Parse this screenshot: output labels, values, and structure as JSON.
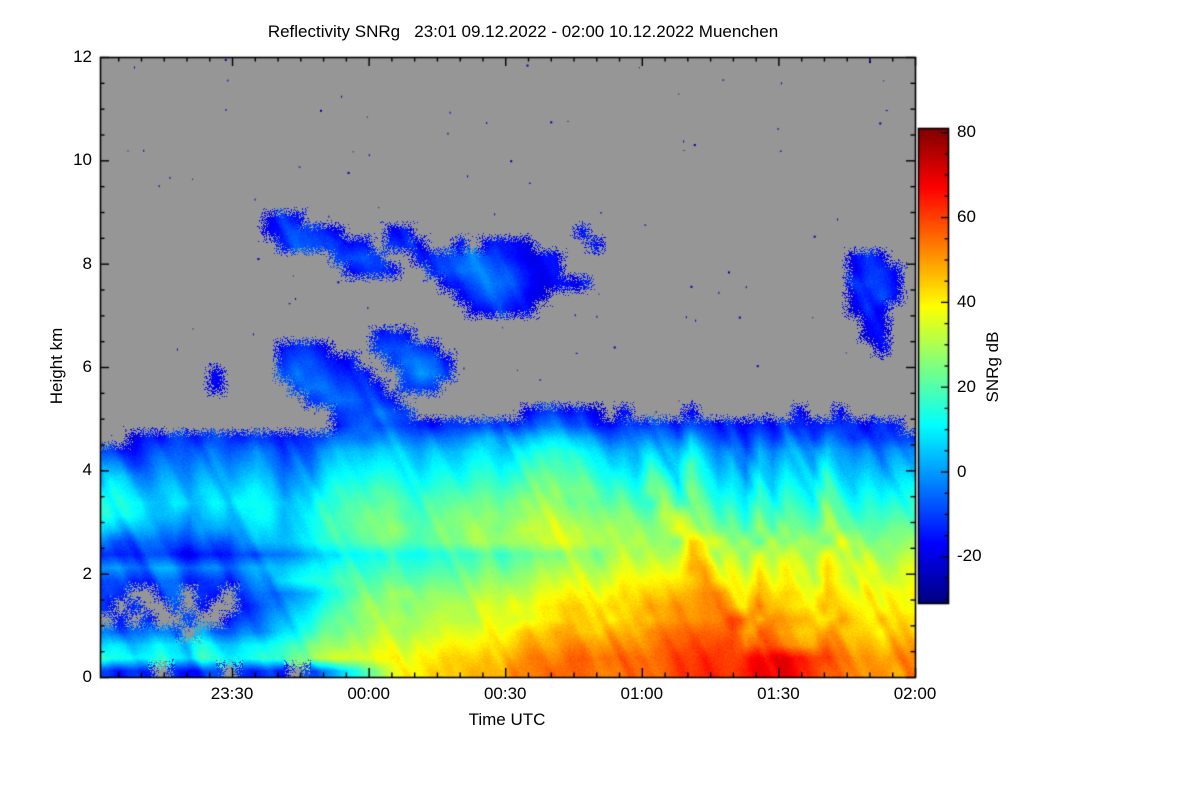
{
  "figure": {
    "title": "Reflectivity SNRg   23:01 09.12.2022 - 02:00 10.12.2022 Muenchen"
  },
  "chart_data": {
    "type": "heatmap",
    "title": "Reflectivity SNRg   23:01 09.12.2022 - 02:00 10.12.2022 Muenchen",
    "xlabel": "Time UTC",
    "ylabel": "Height km",
    "colorbar_label": "SNRg dB",
    "x_start": "23:01 09.12.2022",
    "x_end": "02:00 10.12.2022",
    "x_total_minutes": 179,
    "x_ticks": [
      {
        "label": "23:30",
        "minute": 29
      },
      {
        "label": "00:00",
        "minute": 59
      },
      {
        "label": "00:30",
        "minute": 89
      },
      {
        "label": "01:00",
        "minute": 119
      },
      {
        "label": "01:30",
        "minute": 149
      },
      {
        "label": "02:00",
        "minute": 179
      }
    ],
    "x_minor_step_min": 5,
    "x_first_minor_min": 4,
    "y_range_km": [
      0,
      12
    ],
    "y_major_ticks": [
      0,
      2,
      4,
      6,
      8,
      10,
      12
    ],
    "y_minor_step_km": 0.5,
    "colorbar_range_dB": [
      -31,
      81
    ],
    "colorbar_major_ticks": [
      80,
      60,
      40,
      20,
      0,
      -20
    ],
    "colorbar_minor_step_dB": 5,
    "colormap": "jet",
    "no_data_color": "#969696",
    "speck_color_dB": -26,
    "noise_specks": {
      "count": 175,
      "seed": 11
    },
    "grid": {
      "cols": 60,
      "rows": 48,
      "row0_is_top": true,
      "height_top_km": 12,
      "height_bottom_km": 0,
      "value_map": {
        "no_data": ".",
        "min_dB": -28,
        "step_dB": 4,
        "chars": "abcdefghijklmnopqrstuvwxyz"
      },
      "rows_top_to_bottom": [
        "............................................................",
        "............................................................",
        "............................................................",
        "............................................................",
        "............................................................",
        "............................................................",
        "............................................................",
        "............................................................",
        "............................................................",
        "............................................................",
        "............................................................",
        "............................................................",
        "............ded.............................................",
        "............defedd...dd............d........................",
        ".............effeedd.eed..d.deed....d.......................",
        ".................effe..deffgfeeddd.....................ded..",
        "..................deed..efgggffedd.....................deed.",
        ".........................defggfedddd...................efed.",
        "..........................deffedd......................defd.",
        "...........................ddedd.......................ded..",
        "........................................................dd..",
        "....................ded.................................dd..",
        ".............deed...effed................................d..",
        ".............effedd..eggfd..................................",
        "........d....fgffeed..fhge..................................",
        "........d.....fggffed.efe...................................",
        "...............efggfed......................................",
        ".................effgfe........deeded.d....d.......d..d.....",
        ".................dfgffeddeeefeefggffeefefedfededededeeeedee",
        "..deefeefeefedeefggghhgfggghihhijjiihghghgfigefegegfehfefeff",
        "eeefggfggfghgeffhiiijjihiiijjijkllkkjijijihkighfigihgjhghghh",
        "ggfghhghhghihfggijjjkkjijjjkkjklmmllkjkjljimjhigjhjihkihihii",
        "iihhiihiihijighhjkkkllkjkkkllklmnnmmlklknljmkijhkikjiljijijj",
        "kjiijjijjijkjhiiklllmmlklllmmlmnnonnmlmlonknljkiljlkjmkjkjkk",
        "lkjjjkjjkjkkkijjllmmmnmlmmmnnmnooonnmmnmmplnmkljmkmlknlklkll",
        "lkjijjhjjijkkijklmmnnnmmmnnnonnoppoonnonnqponlmknlnmlomlmlmm",
        "jihhhigiihijjijklmmnnonmnnnoonoppqppoooooprpomnlomonmpnmnmnn",
        "gffffgfggfhiiijkllmmnnmmnnnooooopqqppoopoposrpnompnponqononoo",
        "eeeeeedeeeffgghijjkkklkkllllmlmmnnoonopoppqtropnqoqporpopoop",
        "hhgghhghhghiiijkkllllmllmmmmnmnnooppopqpqqrutqqorprqpsqpqppq",
        "ffeeffeffeghhjkllmmmmnmmnnnnonooppqqpqrqrrsturrpsqrqpsqpqpqq",
        "fe..ef.fe.fggghiklmnnoonoooopoppqqrrqrsrsstuvusqtrsrqtrqrqrr",
        "e.e..e.e..efghijlmnooonooppPqpqqrrssrssSttuuvvtrussrrtsrrqrr",
        ".e.e..e..efghijkmnnoopooppppqqpqrrsssrststuuvvwvsuttsrusrsrss",
        "gfgghg.hgghhijklnnooppoppqqqrqrssttsstttuuvvwwwtvutssutssrss",
        "jjijkjikjjkkllmnooppqqpqqrrrsrstttuutuuuuvvwwxxuwvuttvuttstt",
        "lkkklkjlkkllmmnopqqqrrqrrssststuuuvvuvvvvvwwxxxxyyyxwwvuutuu",
        "edee.edee.fefe.fgikmoqrrssstttuuuvvvuuvvvvwwxxxyyyyxwvvuuutu"
      ]
    }
  },
  "labels": {
    "y_ticks": [
      "12",
      "10",
      "8",
      "6",
      "4",
      "2",
      "0"
    ],
    "x_ticks": [
      "23:30",
      "00:00",
      "00:30",
      "01:00",
      "01:30",
      "02:00"
    ],
    "cb_ticks": [
      "80",
      "60",
      "40",
      "20",
      "0",
      "-20"
    ]
  }
}
